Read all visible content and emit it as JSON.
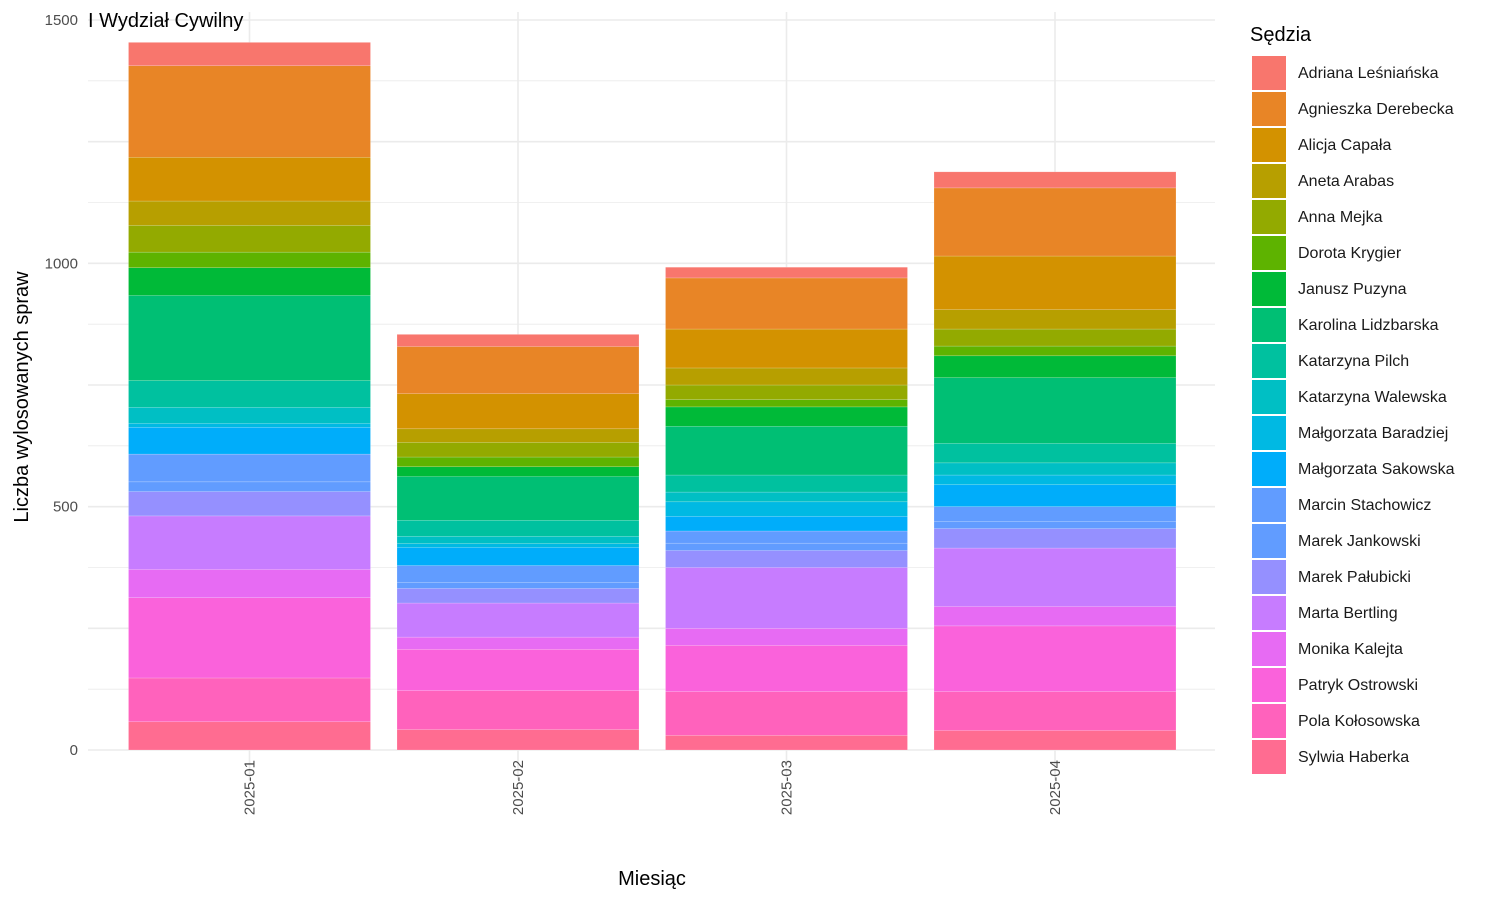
{
  "chart_data": {
    "type": "bar",
    "stacked": true,
    "title": "I Wydział Cywilny",
    "xlabel": "Miesiąc",
    "ylabel": "Liczba wylosowanych spraw",
    "ylim": [
      0,
      1500
    ],
    "yticks": [
      0,
      500,
      1000,
      1500
    ],
    "grid": true,
    "legend_position": "right",
    "legend_title": "Sędzia",
    "categories": [
      "2025-01",
      "2025-02",
      "2025-03",
      "2025-04"
    ],
    "series": [
      {
        "name": "Adriana Leśniańska",
        "color": "#F8766D",
        "values": [
          48,
          25,
          22,
          33
        ]
      },
      {
        "name": "Agnieszka Derebecka",
        "color": "#E88526",
        "values": [
          188,
          97,
          105,
          140
        ]
      },
      {
        "name": "Alicja Capała",
        "color": "#D39200",
        "values": [
          90,
          72,
          80,
          110
        ]
      },
      {
        "name": "Aneta Arabas",
        "color": "#B79F00",
        "values": [
          50,
          28,
          35,
          40
        ]
      },
      {
        "name": "Anna Mejka",
        "color": "#93AA00",
        "values": [
          55,
          30,
          30,
          35
        ]
      },
      {
        "name": "Dorota Krygier",
        "color": "#5EB300",
        "values": [
          32,
          20,
          15,
          20
        ]
      },
      {
        "name": "Janusz Puzyna",
        "color": "#00BA38",
        "values": [
          57,
          20,
          40,
          45
        ]
      },
      {
        "name": "Karolina Lidzbarska",
        "color": "#00BF74",
        "values": [
          175,
          90,
          100,
          135
        ]
      },
      {
        "name": "Katarzyna Pilch",
        "color": "#00C19F",
        "values": [
          55,
          33,
          35,
          40
        ]
      },
      {
        "name": "Katarzyna Walewska",
        "color": "#00BFC4",
        "values": [
          33,
          15,
          20,
          25
        ]
      },
      {
        "name": "Małgorzata Baradziej",
        "color": "#00B9E3",
        "values": [
          8,
          8,
          30,
          20
        ]
      },
      {
        "name": "Małgorzata Sakowska",
        "color": "#00ADFA",
        "values": [
          55,
          37,
          30,
          45
        ]
      },
      {
        "name": "Marcin Stachowicz",
        "color": "#619CFF",
        "values": [
          57,
          35,
          25,
          30
        ]
      },
      {
        "name": "Marek Jankowski",
        "color": "#619CFF",
        "values": [
          20,
          12,
          15,
          15
        ]
      },
      {
        "name": "Marek Pałubicki",
        "color": "#9590FF",
        "values": [
          50,
          30,
          35,
          40
        ]
      },
      {
        "name": "Marta Bertling",
        "color": "#C77CFF",
        "values": [
          110,
          70,
          125,
          120
        ]
      },
      {
        "name": "Monika Kalejta",
        "color": "#E76BF3",
        "values": [
          58,
          25,
          35,
          40
        ]
      },
      {
        "name": "Patryk Ostrowski",
        "color": "#FA62DB",
        "values": [
          165,
          85,
          95,
          135
        ]
      },
      {
        "name": "Pola Kołosowska",
        "color": "#FF62BC",
        "values": [
          90,
          80,
          90,
          80
        ]
      },
      {
        "name": "Sylwia Haberka",
        "color": "#FF6C91",
        "values": [
          58,
          42,
          30,
          40
        ]
      }
    ]
  }
}
